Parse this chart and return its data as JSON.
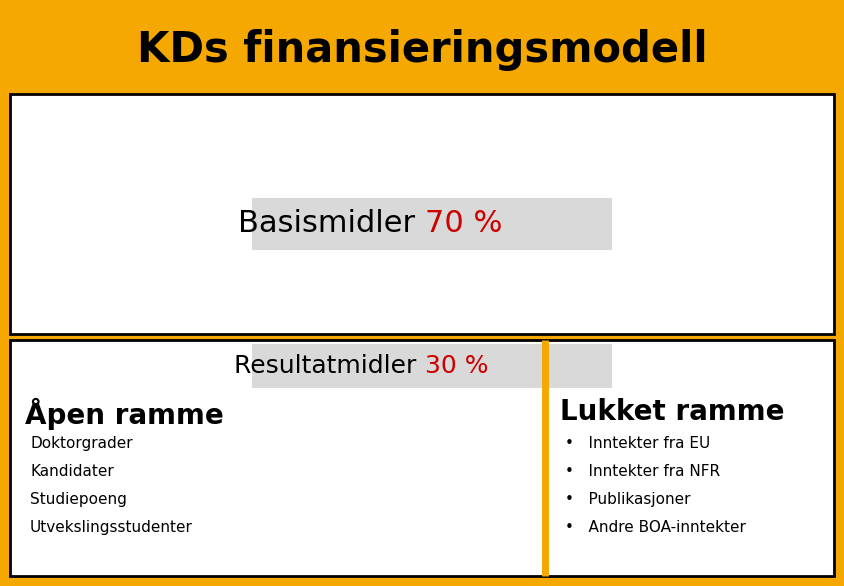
{
  "title": "KDs finansieringsmodell",
  "title_bg_color": "#F5A800",
  "title_text_color": "#000000",
  "title_fontsize": 30,
  "outer_border_color": "#F5A800",
  "inner_border_color": "#000000",
  "background_color": "#ffffff",
  "basis_label_black": "Basismidler ",
  "basis_label_red": "70 %",
  "resultat_label_black": "Resultatmidler ",
  "resultat_label_red": "30 %",
  "label_box_color": "#D9D9D9",
  "highlight_color": "#CC0000",
  "apen_ramme_title": "Åpen ramme",
  "apen_ramme_items": [
    "Doktorgrader",
    "Kandidater",
    "Studiepoeng",
    "Utvekslingsstudenter"
  ],
  "lukket_ramme_title": "Lukket ramme",
  "lukket_ramme_items": [
    "Inntekter fra EU",
    "Inntekter fra NFR",
    "Publikasjoner",
    "Andre BOA-inntekter"
  ],
  "divider_color": "#F5A800",
  "outer_bg_color": "#F5A800",
  "figsize": [
    8.44,
    5.86
  ],
  "dpi": 100
}
